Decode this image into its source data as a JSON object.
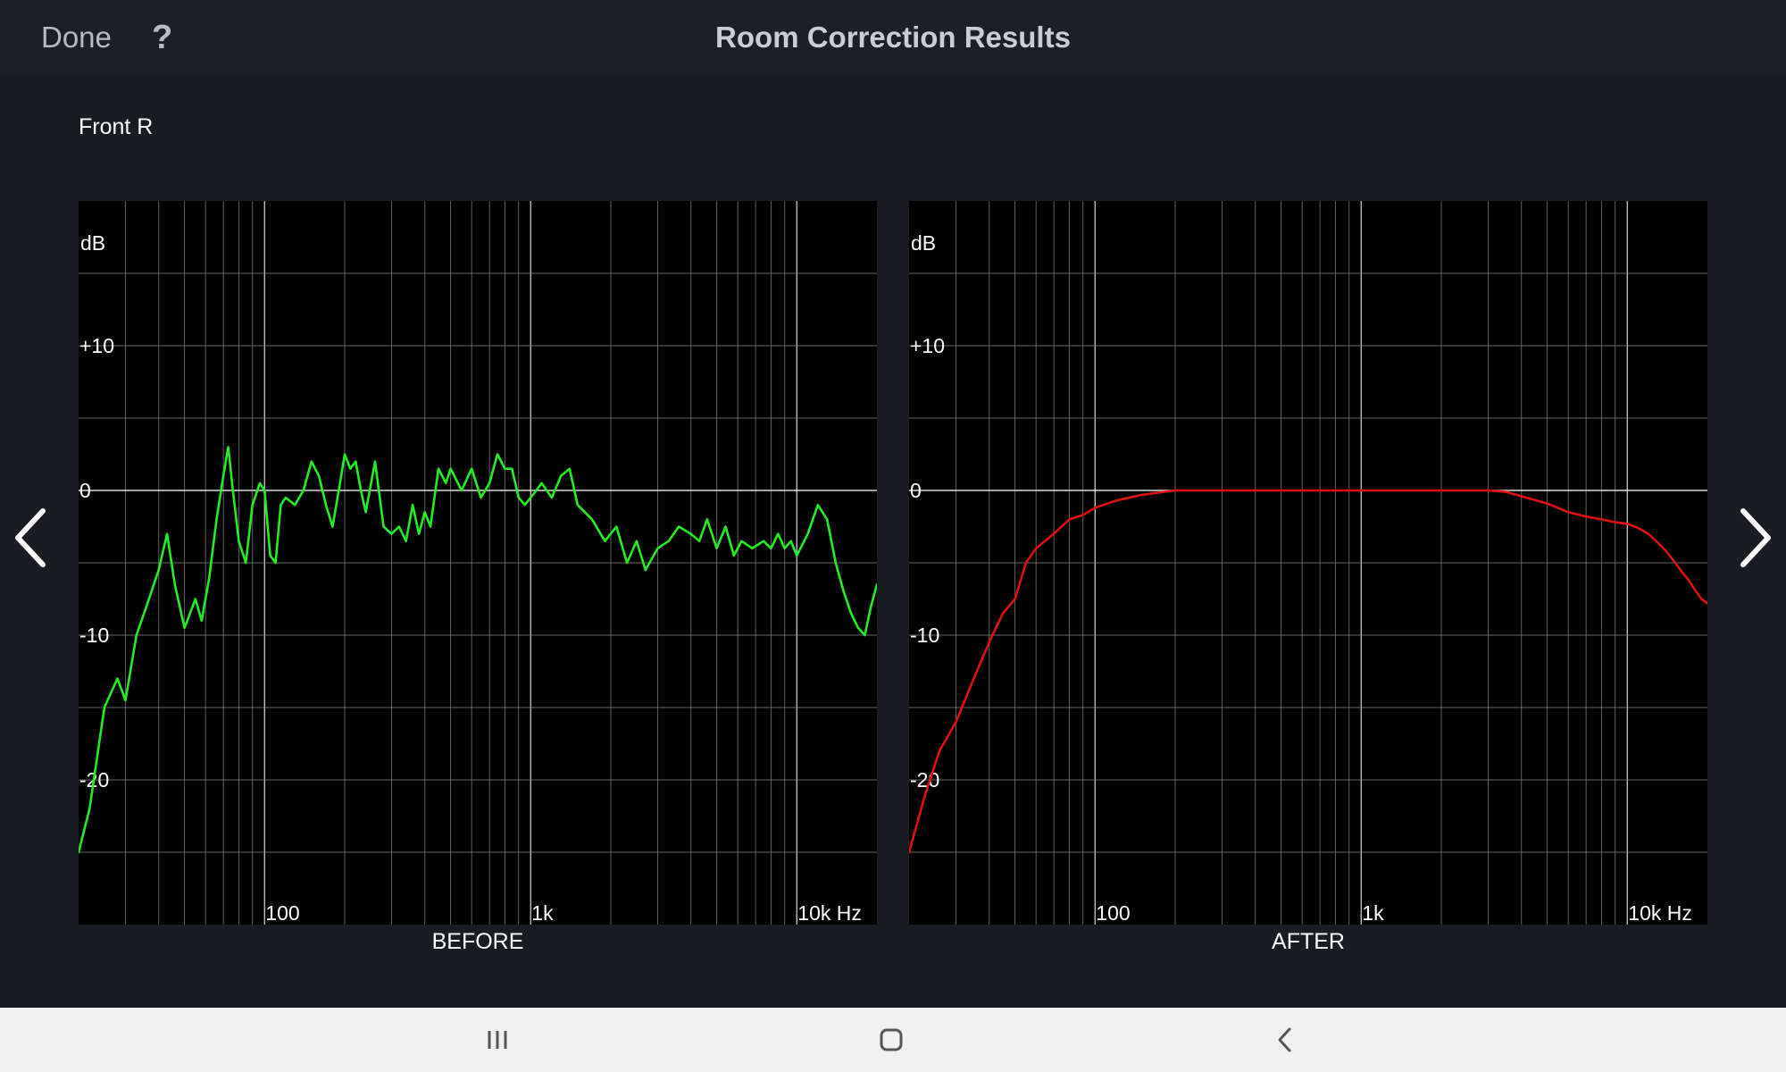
{
  "header": {
    "title": "Room Correction Results",
    "done_label": "Done",
    "help_label": "?"
  },
  "channel": "Front R",
  "nav": {
    "prev_icon": "chevron-left-icon",
    "next_icon": "chevron-right-icon"
  },
  "system_bar": {
    "recents_icon": "recents-icon",
    "home_icon": "home-icon",
    "back_icon": "back-icon"
  },
  "colors": {
    "background": "#191c21",
    "before_line": "#22ee22",
    "after_line": "#e01010",
    "grid": "#8a8a8a"
  },
  "chart_data": [
    {
      "type": "line",
      "caption": "BEFORE",
      "ylabel": "dB",
      "y_scale": "linear",
      "x_scale": "log",
      "xlim": [
        20,
        20000
      ],
      "ylim": [
        -30,
        20
      ],
      "y_ticks": [
        {
          "v": 10,
          "label": "+10"
        },
        {
          "v": 0,
          "label": "0"
        },
        {
          "v": -10,
          "label": "-10"
        },
        {
          "v": -20,
          "label": "-20"
        }
      ],
      "x_ticks": [
        {
          "v": 100,
          "label": "100"
        },
        {
          "v": 1000,
          "label": "1k"
        },
        {
          "v": 10000,
          "label": "10k Hz"
        }
      ],
      "series": [
        {
          "color": "#22ee22",
          "points": [
            [
              20,
              -25
            ],
            [
              22,
              -22
            ],
            [
              25,
              -15
            ],
            [
              28,
              -13
            ],
            [
              30,
              -14.5
            ],
            [
              33,
              -10
            ],
            [
              36,
              -8
            ],
            [
              40,
              -5.5
            ],
            [
              43,
              -3
            ],
            [
              46,
              -6.5
            ],
            [
              50,
              -9.5
            ],
            [
              55,
              -7.5
            ],
            [
              58,
              -9
            ],
            [
              62,
              -6
            ],
            [
              66,
              -2
            ],
            [
              70,
              1
            ],
            [
              73,
              3
            ],
            [
              76,
              0
            ],
            [
              80,
              -3.5
            ],
            [
              85,
              -5
            ],
            [
              90,
              -1
            ],
            [
              96,
              0.5
            ],
            [
              100,
              0
            ],
            [
              105,
              -4.5
            ],
            [
              110,
              -5
            ],
            [
              115,
              -1
            ],
            [
              120,
              -0.5
            ],
            [
              130,
              -1
            ],
            [
              140,
              0
            ],
            [
              150,
              2
            ],
            [
              160,
              1
            ],
            [
              170,
              -1
            ],
            [
              180,
              -2.5
            ],
            [
              190,
              0
            ],
            [
              200,
              2.5
            ],
            [
              210,
              1.5
            ],
            [
              220,
              2
            ],
            [
              230,
              0
            ],
            [
              240,
              -1.5
            ],
            [
              260,
              2
            ],
            [
              280,
              -2.5
            ],
            [
              300,
              -3
            ],
            [
              320,
              -2.5
            ],
            [
              340,
              -3.5
            ],
            [
              360,
              -1
            ],
            [
              380,
              -3
            ],
            [
              400,
              -1.5
            ],
            [
              420,
              -2.5
            ],
            [
              450,
              1.5
            ],
            [
              480,
              0.5
            ],
            [
              500,
              1.5
            ],
            [
              550,
              0
            ],
            [
              600,
              1.5
            ],
            [
              650,
              -0.5
            ],
            [
              700,
              0.5
            ],
            [
              750,
              2.5
            ],
            [
              800,
              1.5
            ],
            [
              850,
              1.5
            ],
            [
              900,
              -0.5
            ],
            [
              950,
              -1
            ],
            [
              1000,
              -0.5
            ],
            [
              1100,
              0.5
            ],
            [
              1200,
              -0.5
            ],
            [
              1300,
              1
            ],
            [
              1400,
              1.5
            ],
            [
              1500,
              -1
            ],
            [
              1700,
              -2
            ],
            [
              1900,
              -3.5
            ],
            [
              2100,
              -2.5
            ],
            [
              2300,
              -5
            ],
            [
              2500,
              -3.5
            ],
            [
              2700,
              -5.5
            ],
            [
              3000,
              -4
            ],
            [
              3300,
              -3.5
            ],
            [
              3600,
              -2.5
            ],
            [
              4000,
              -3
            ],
            [
              4300,
              -3.5
            ],
            [
              4600,
              -2
            ],
            [
              5000,
              -4
            ],
            [
              5400,
              -2.5
            ],
            [
              5800,
              -4.5
            ],
            [
              6200,
              -3.5
            ],
            [
              6800,
              -4
            ],
            [
              7500,
              -3.5
            ],
            [
              8000,
              -4
            ],
            [
              8500,
              -3
            ],
            [
              9000,
              -4
            ],
            [
              9500,
              -3.5
            ],
            [
              10000,
              -4.5
            ],
            [
              11000,
              -3
            ],
            [
              12000,
              -1
            ],
            [
              13000,
              -2
            ],
            [
              14000,
              -5
            ],
            [
              15000,
              -7
            ],
            [
              16000,
              -8.5
            ],
            [
              17000,
              -9.5
            ],
            [
              18000,
              -10
            ],
            [
              19000,
              -8
            ],
            [
              20000,
              -6.5
            ]
          ]
        }
      ]
    },
    {
      "type": "line",
      "caption": "AFTER",
      "ylabel": "dB",
      "y_scale": "linear",
      "x_scale": "log",
      "xlim": [
        20,
        20000
      ],
      "ylim": [
        -30,
        20
      ],
      "y_ticks": [
        {
          "v": 10,
          "label": "+10"
        },
        {
          "v": 0,
          "label": "0"
        },
        {
          "v": -10,
          "label": "-10"
        },
        {
          "v": -20,
          "label": "-20"
        }
      ],
      "x_ticks": [
        {
          "v": 100,
          "label": "100"
        },
        {
          "v": 1000,
          "label": "1k"
        },
        {
          "v": 10000,
          "label": "10k Hz"
        }
      ],
      "series": [
        {
          "color": "#e01010",
          "points": [
            [
              20,
              -25
            ],
            [
              23,
              -21
            ],
            [
              26,
              -18
            ],
            [
              30,
              -16
            ],
            [
              35,
              -13
            ],
            [
              40,
              -10.5
            ],
            [
              45,
              -8.5
            ],
            [
              50,
              -7.5
            ],
            [
              55,
              -5
            ],
            [
              60,
              -4
            ],
            [
              70,
              -3
            ],
            [
              80,
              -2
            ],
            [
              90,
              -1.7
            ],
            [
              100,
              -1.2
            ],
            [
              120,
              -0.7
            ],
            [
              150,
              -0.3
            ],
            [
              200,
              0
            ],
            [
              300,
              0
            ],
            [
              500,
              0
            ],
            [
              800,
              0
            ],
            [
              1000,
              0
            ],
            [
              1500,
              0
            ],
            [
              2000,
              0
            ],
            [
              3000,
              0
            ],
            [
              3500,
              -0.1
            ],
            [
              4000,
              -0.4
            ],
            [
              5000,
              -0.9
            ],
            [
              6000,
              -1.5
            ],
            [
              7000,
              -1.8
            ],
            [
              8000,
              -2
            ],
            [
              9000,
              -2.2
            ],
            [
              10000,
              -2.3
            ],
            [
              11000,
              -2.6
            ],
            [
              12000,
              -3
            ],
            [
              13000,
              -3.6
            ],
            [
              14000,
              -4.2
            ],
            [
              15000,
              -4.9
            ],
            [
              16000,
              -5.6
            ],
            [
              17000,
              -6.2
            ],
            [
              18000,
              -6.9
            ],
            [
              19000,
              -7.5
            ],
            [
              20000,
              -7.8
            ]
          ]
        }
      ]
    }
  ]
}
